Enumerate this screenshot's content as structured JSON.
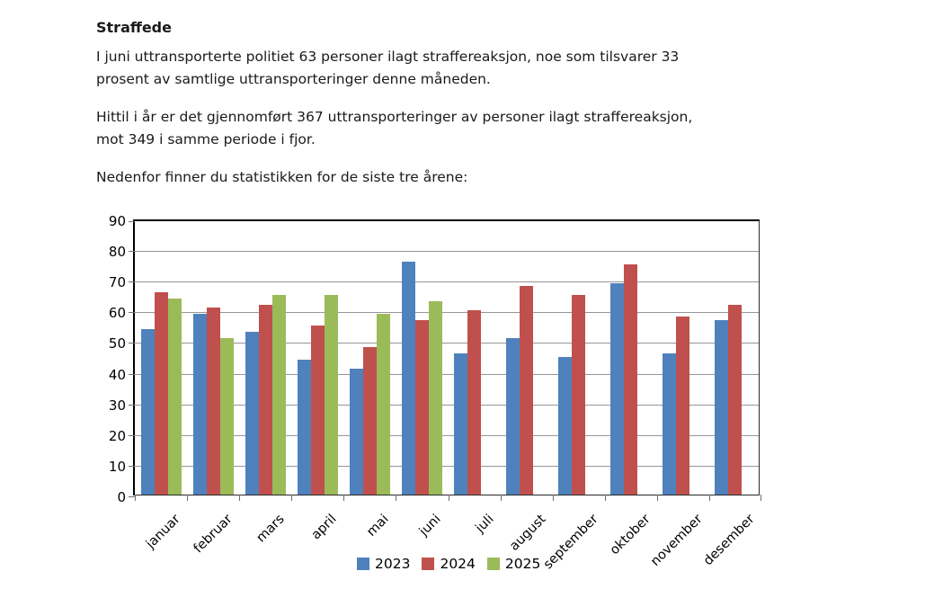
{
  "document": {
    "heading": "Straffede",
    "para1": "I juni uttransporterte politiet 63 personer ilagt straffereaksjon, noe som tilsvarer 33\nprosent av samtlige uttransporteringer denne måneden.",
    "para2": "Hittil i år er det gjennomført 367 uttransporteringer av personer ilagt straffereaksjon,\nmot 349 i samme periode i fjor.",
    "para3": "Nedenfor finner du statistikken for de siste tre årene:"
  },
  "chart_data": {
    "type": "bar",
    "title": "",
    "xlabel": "",
    "ylabel": "",
    "categories": [
      "januar",
      "februar",
      "mars",
      "april",
      "mai",
      "juni",
      "juli",
      "august",
      "september",
      "oktober",
      "november",
      "desember"
    ],
    "series": [
      {
        "name": "2023",
        "color": "#4f81bd",
        "values": [
          54,
          59,
          53,
          44,
          41,
          76,
          46,
          51,
          45,
          69,
          46,
          57
        ]
      },
      {
        "name": "2024",
        "color": "#c0504d",
        "values": [
          66,
          61,
          62,
          55,
          48,
          57,
          60,
          68,
          65,
          75,
          58,
          62
        ]
      },
      {
        "name": "2025",
        "color": "#9bbb59",
        "values": [
          64,
          51,
          65,
          65,
          59,
          63,
          null,
          null,
          null,
          null,
          null,
          null
        ]
      }
    ],
    "ylim": [
      0,
      90
    ],
    "ytick_step": 10,
    "grid": true,
    "legend_position": "bottom",
    "colors": {
      "gridline": "#969696",
      "axis": "#000000",
      "text": "#1a1a1a"
    }
  }
}
